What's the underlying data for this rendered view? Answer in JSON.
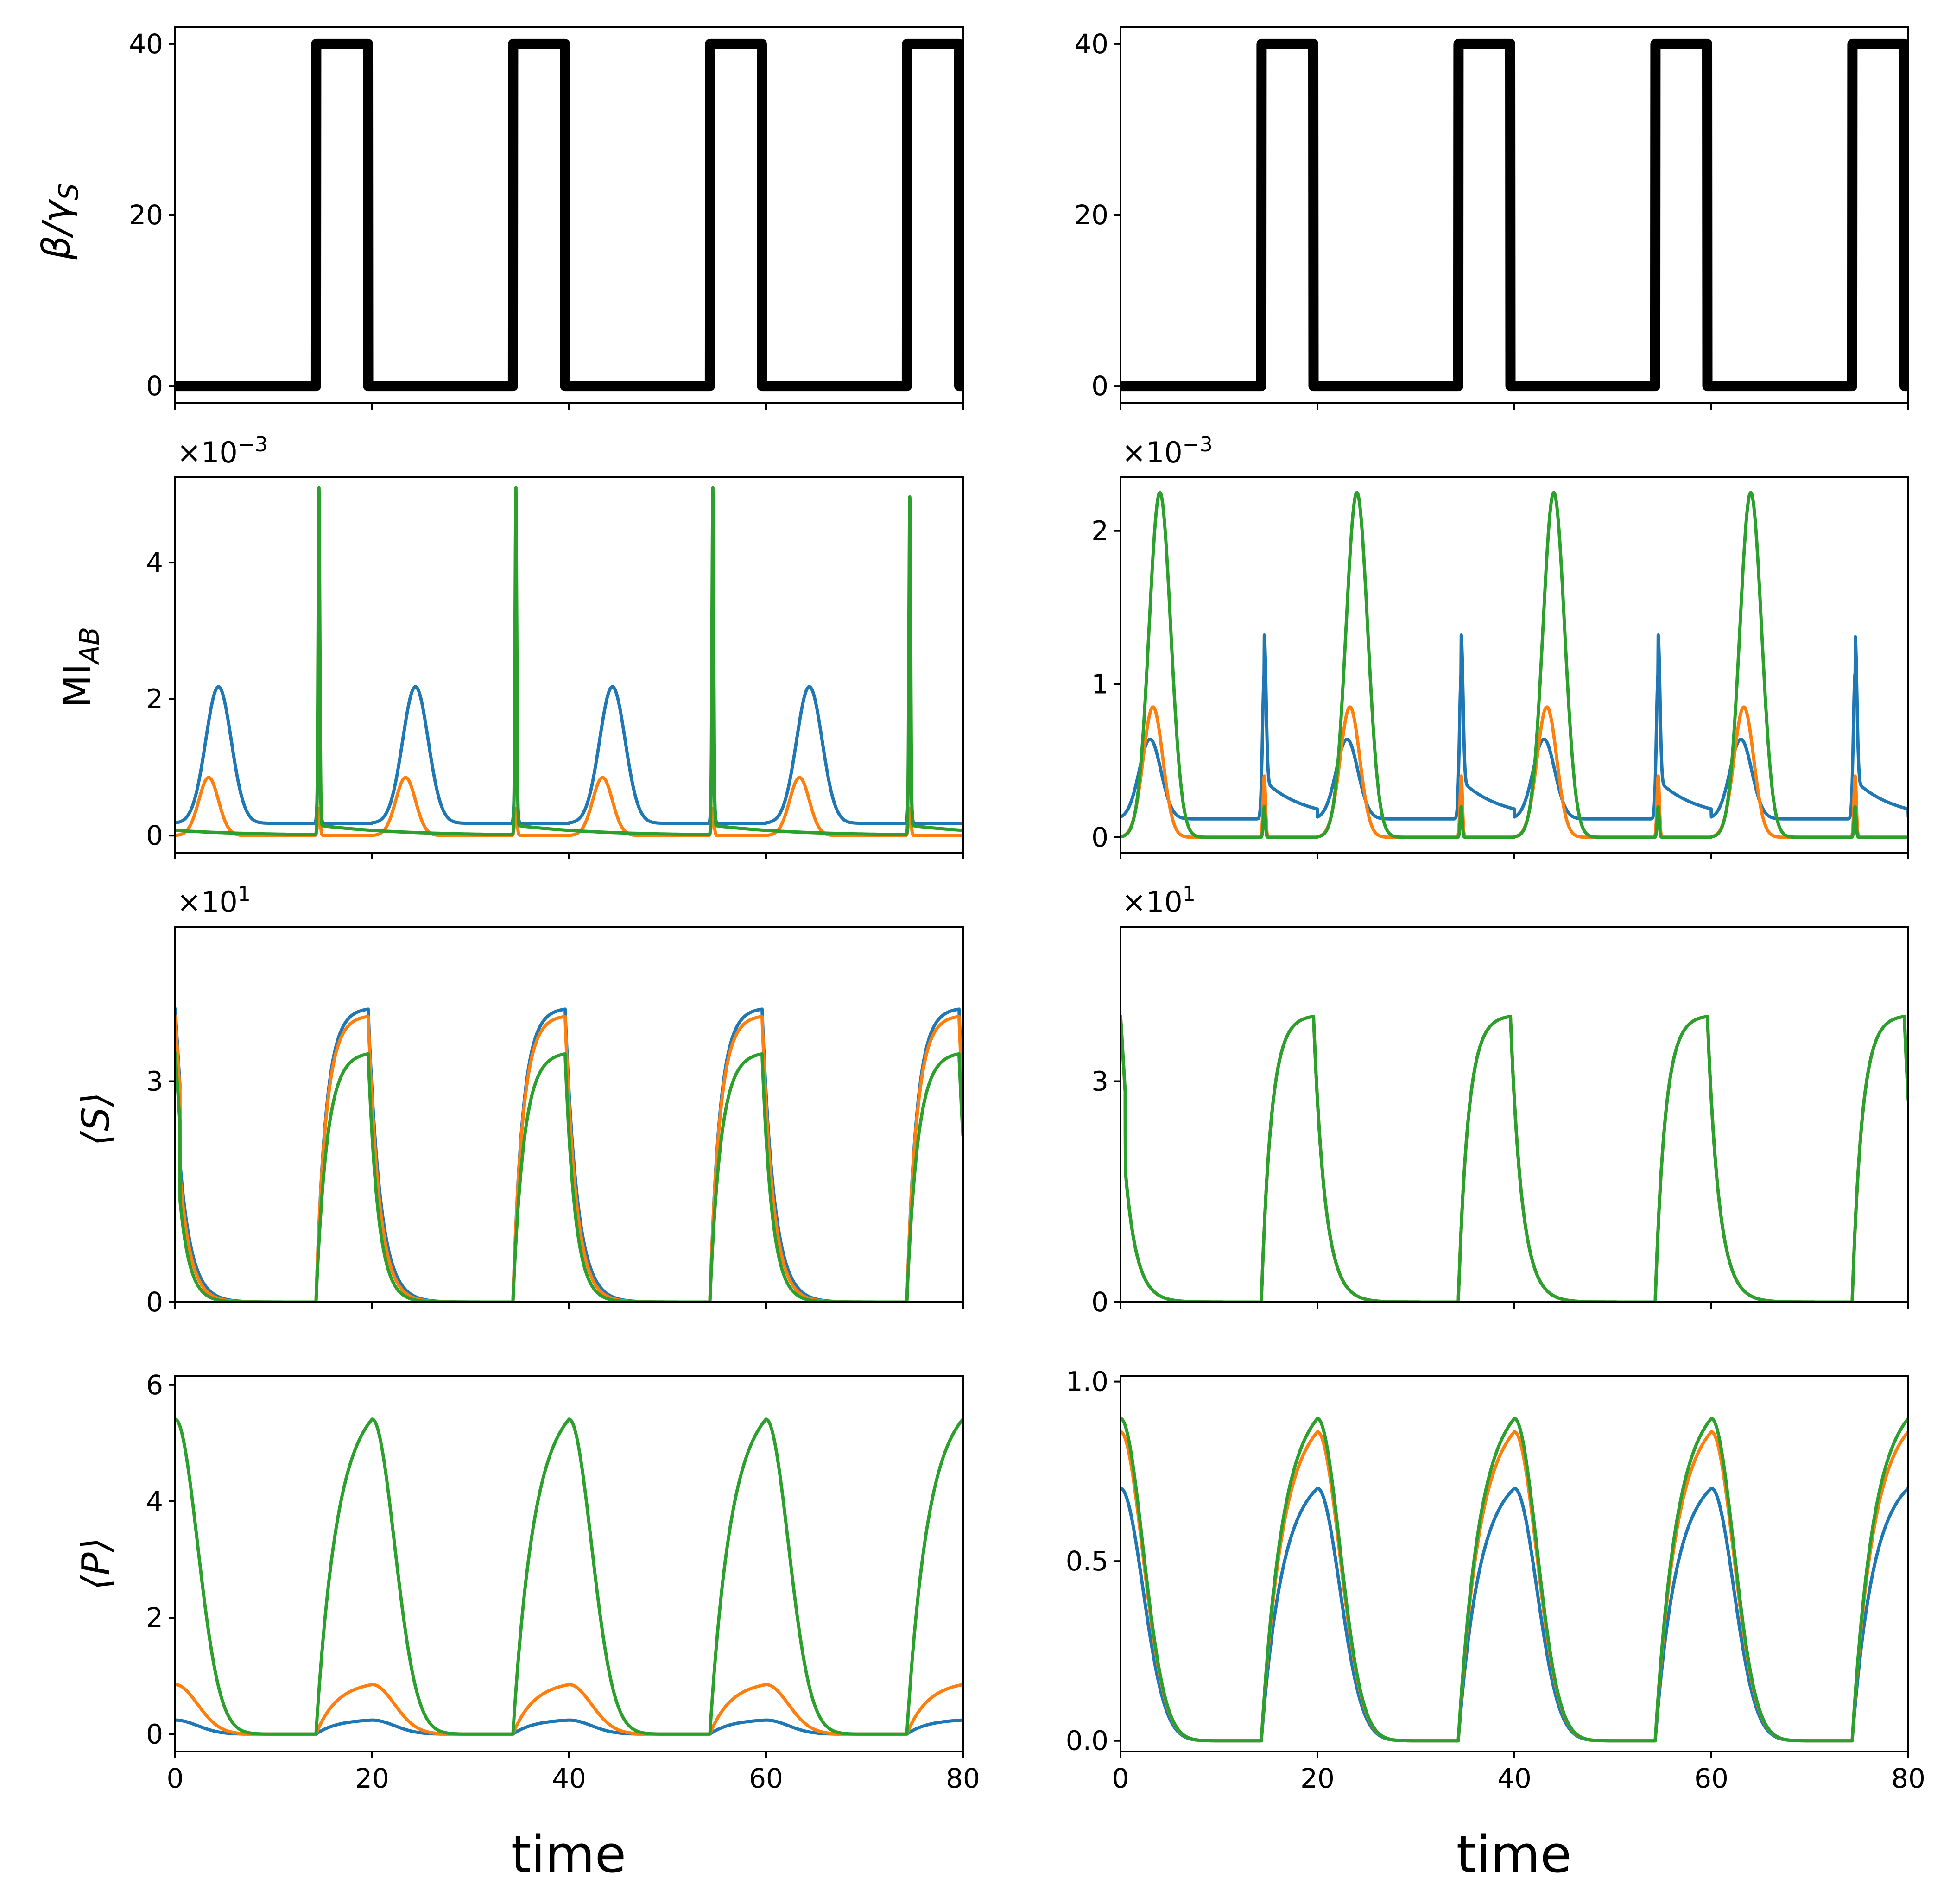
{
  "figure": {
    "type": "grid",
    "rows": 4,
    "cols": 2,
    "colors": {
      "blue": "#1f77b4",
      "orange": "#ff7f0e",
      "green": "#2ca02c",
      "black": "#000000"
    }
  },
  "x_axis": {
    "label": "time",
    "xlim": [
      0,
      80
    ],
    "ticks": [
      0,
      20,
      40,
      60,
      80
    ],
    "tick_labels": [
      "0",
      "20",
      "40",
      "60",
      "80"
    ]
  },
  "row_labels": {
    "beta": "β/γS",
    "beta_main": "β/γ",
    "beta_sub": "S",
    "mi": "MIAB",
    "mi_main": "MI",
    "mi_sub": "AB",
    "s": "⟨S⟩",
    "s_main": "⟨S⟩",
    "p": "⟨P⟩",
    "p_main": "⟨P⟩"
  },
  "offset_texts": {
    "mi_left": "×10−3",
    "mi_right": "×10−3",
    "s_left": "×101",
    "s_right": "×101",
    "base": "×10",
    "mi_exp": "−3",
    "s_exp": "1"
  },
  "chart_data": [
    {
      "id": "beta-left",
      "type": "line",
      "row": 0,
      "col": 0,
      "ylabel": "β/γS",
      "ylim": [
        -2,
        42
      ],
      "yticks": [
        0,
        20,
        40
      ],
      "ytick_labels": [
        "0",
        "20",
        "40"
      ],
      "series": [
        {
          "name": "beta",
          "color": "#000000",
          "width": 7,
          "func": "beta"
        }
      ]
    },
    {
      "id": "beta-right",
      "type": "line",
      "row": 0,
      "col": 1,
      "ylabel": "",
      "ylim": [
        -2,
        42
      ],
      "yticks": [
        0,
        20,
        40
      ],
      "ytick_labels": [
        "0",
        "20",
        "40"
      ],
      "series": [
        {
          "name": "beta",
          "color": "#000000",
          "width": 7,
          "func": "beta"
        }
      ]
    },
    {
      "id": "mi-left",
      "type": "line",
      "row": 1,
      "col": 0,
      "ylabel": "MIAB",
      "ylim": [
        -0.25,
        5.25
      ],
      "offset": "×10−3",
      "yticks": [
        0,
        2,
        4
      ],
      "ytick_labels": [
        "0",
        "2",
        "4"
      ],
      "series": [
        {
          "name": "blue",
          "color": "#1f77b4",
          "width": 2,
          "func": "miL_blue"
        },
        {
          "name": "orange",
          "color": "#ff7f0e",
          "width": 2,
          "func": "miL_orange"
        },
        {
          "name": "green",
          "color": "#2ca02c",
          "width": 2,
          "func": "miL_green"
        }
      ]
    },
    {
      "id": "mi-right",
      "type": "line",
      "row": 1,
      "col": 1,
      "ylabel": "",
      "ylim": [
        -0.1,
        2.35
      ],
      "offset": "×10−3",
      "yticks": [
        0,
        1,
        2
      ],
      "ytick_labels": [
        "0",
        "1",
        "2"
      ],
      "series": [
        {
          "name": "blue",
          "color": "#1f77b4",
          "width": 2,
          "func": "miR_blue"
        },
        {
          "name": "orange",
          "color": "#ff7f0e",
          "width": 2,
          "func": "miR_orange"
        },
        {
          "name": "green",
          "color": "#2ca02c",
          "width": 2,
          "func": "miR_green"
        }
      ]
    },
    {
      "id": "s-left",
      "type": "line",
      "row": 2,
      "col": 0,
      "ylabel": "⟨S⟩",
      "ylim": [
        0,
        5.1
      ],
      "offset": "×101",
      "yticks": [
        0,
        3
      ],
      "ytick_labels": [
        "0",
        "3"
      ],
      "series": [
        {
          "name": "blue",
          "color": "#1f77b4",
          "width": 2,
          "func": "sL_blue"
        },
        {
          "name": "orange",
          "color": "#ff7f0e",
          "width": 2,
          "func": "sL_orange"
        },
        {
          "name": "green",
          "color": "#2ca02c",
          "width": 2,
          "func": "sL_green"
        }
      ]
    },
    {
      "id": "s-right",
      "type": "line",
      "row": 2,
      "col": 1,
      "ylabel": "",
      "ylim": [
        0,
        5.1
      ],
      "offset": "×101",
      "yticks": [
        0,
        3
      ],
      "ytick_labels": [
        "0",
        "3"
      ],
      "series": [
        {
          "name": "blue",
          "color": "#1f77b4",
          "width": 2,
          "func": "sR"
        },
        {
          "name": "orange",
          "color": "#ff7f0e",
          "width": 2,
          "func": "sR"
        },
        {
          "name": "green",
          "color": "#2ca02c",
          "width": 2,
          "func": "sR"
        }
      ]
    },
    {
      "id": "p-left",
      "type": "line",
      "row": 3,
      "col": 0,
      "ylabel": "⟨P⟩",
      "ylim": [
        -0.3,
        6.15
      ],
      "yticks": [
        0,
        2,
        4,
        6
      ],
      "ytick_labels": [
        "0",
        "2",
        "4",
        "6"
      ],
      "show_xticklabels": true,
      "series": [
        {
          "name": "blue",
          "color": "#1f77b4",
          "width": 2,
          "func": "pL_blue"
        },
        {
          "name": "orange",
          "color": "#ff7f0e",
          "width": 2,
          "func": "pL_orange"
        },
        {
          "name": "green",
          "color": "#2ca02c",
          "width": 2,
          "func": "pL_green"
        }
      ]
    },
    {
      "id": "p-right",
      "type": "line",
      "row": 3,
      "col": 1,
      "ylabel": "",
      "ylim": [
        -0.03,
        1.015
      ],
      "yticks": [
        0,
        0.5,
        1.0
      ],
      "ytick_labels": [
        "0.0",
        "0.5",
        "1.0"
      ],
      "show_xticklabels": true,
      "series": [
        {
          "name": "blue",
          "color": "#1f77b4",
          "width": 2,
          "func": "pR_blue"
        },
        {
          "name": "orange",
          "color": "#ff7f0e",
          "width": 2,
          "func": "pR_orange"
        },
        {
          "name": "green",
          "color": "#2ca02c",
          "width": 2,
          "func": "pR_green"
        }
      ]
    }
  ]
}
